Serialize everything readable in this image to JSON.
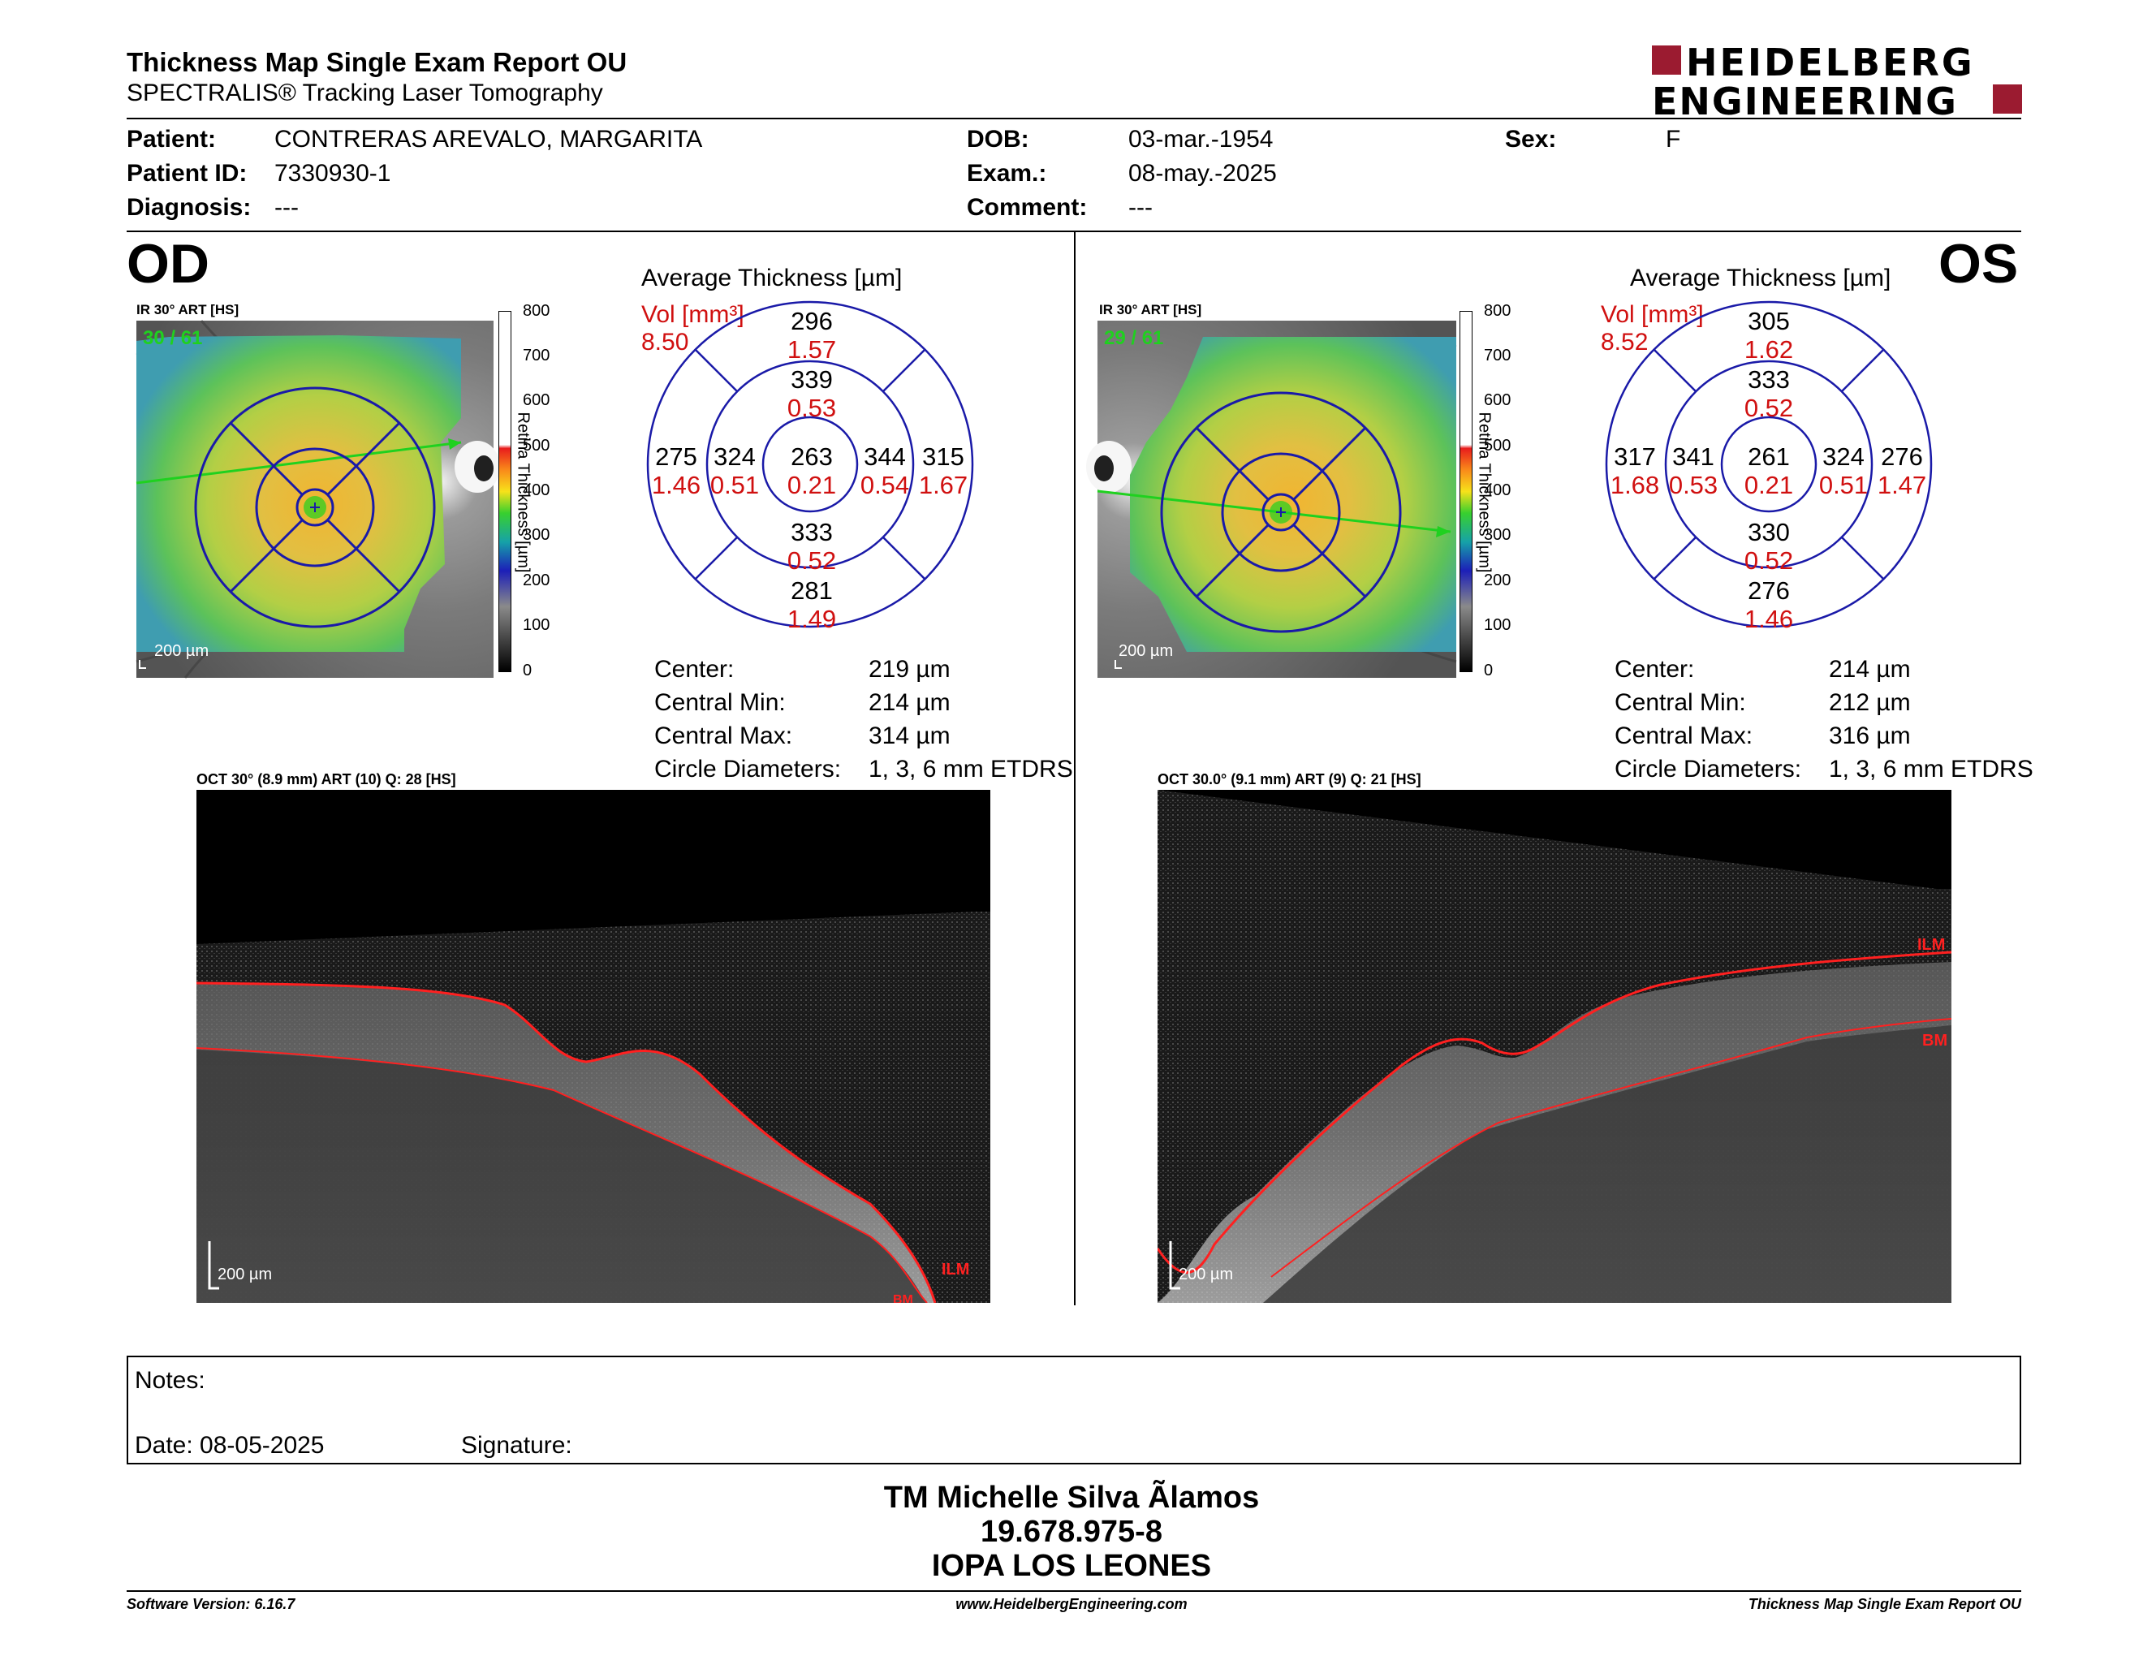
{
  "header": {
    "title": "Thickness Map Single Exam Report OU",
    "subtitle": "SPECTRALIS® Tracking Laser Tomography",
    "logo_line1": "HEIDELBERG",
    "logo_line2": "ENGINEERING",
    "brand_color": "#9b1b30"
  },
  "patient": {
    "patient_label": "Patient:",
    "patient_value": "CONTRERAS AREVALO, MARGARITA",
    "id_label": "Patient ID:",
    "id_value": "7330930-1",
    "diagnosis_label": "Diagnosis:",
    "diagnosis_value": "---",
    "dob_label": "DOB:",
    "dob_value": "03-mar.-1954",
    "exam_label": "Exam.:",
    "exam_value": "08-may.-2025",
    "comment_label": "Comment:",
    "comment_value": "---",
    "sex_label": "Sex:",
    "sex_value": "F"
  },
  "scale": {
    "ticks": [
      "800",
      "700",
      "600",
      "500",
      "400",
      "300",
      "200",
      "100",
      "0"
    ],
    "label": "Retina Thickness [µm]"
  },
  "od": {
    "eye": "OD",
    "ir_label": "IR 30° ART [HS]",
    "ir_counter": "30 / 61",
    "ir_scalebar": "200 µm",
    "avg_title": "Average Thickness [µm]",
    "vol_label": "Vol [mm³]",
    "vol_value": "8.50",
    "sectors": {
      "outer_superior": {
        "thick": "296",
        "vol": "1.57"
      },
      "inner_superior": {
        "thick": "339",
        "vol": "0.53"
      },
      "outer_temporal": {
        "thick": "275",
        "vol": "1.46"
      },
      "inner_temporal": {
        "thick": "324",
        "vol": "0.51"
      },
      "center": {
        "thick": "263",
        "vol": "0.21"
      },
      "inner_nasal": {
        "thick": "344",
        "vol": "0.54"
      },
      "outer_nasal": {
        "thick": "315",
        "vol": "1.67"
      },
      "inner_inferior": {
        "thick": "333",
        "vol": "0.52"
      },
      "outer_inferior": {
        "thick": "281",
        "vol": "1.49"
      }
    },
    "stats": [
      {
        "label": "Center:",
        "value": "219 µm"
      },
      {
        "label": "Central Min:",
        "value": "214 µm"
      },
      {
        "label": "Central Max:",
        "value": "314 µm"
      },
      {
        "label": "Circle Diameters:",
        "value": "1, 3, 6 mm ETDRS"
      }
    ],
    "oct_label": "OCT 30° (8.9 mm) ART (10) Q: 28 [HS]",
    "oct_scalebar": "200 µm",
    "ilm_label": "ILM",
    "bm_label": "BM"
  },
  "os": {
    "eye": "OS",
    "ir_label": "IR 30° ART [HS]",
    "ir_counter": "29 / 61",
    "ir_scalebar": "200 µm",
    "avg_title": "Average Thickness [µm]",
    "vol_label": "Vol [mm³]",
    "vol_value": "8.52",
    "sectors": {
      "outer_superior": {
        "thick": "305",
        "vol": "1.62"
      },
      "inner_superior": {
        "thick": "333",
        "vol": "0.52"
      },
      "outer_temporal": {
        "thick": "317",
        "vol": "1.68"
      },
      "inner_temporal": {
        "thick": "341",
        "vol": "0.53"
      },
      "center": {
        "thick": "261",
        "vol": "0.21"
      },
      "inner_nasal": {
        "thick": "324",
        "vol": "0.51"
      },
      "outer_nasal": {
        "thick": "276",
        "vol": "1.47"
      },
      "inner_inferior": {
        "thick": "330",
        "vol": "0.52"
      },
      "outer_inferior": {
        "thick": "276",
        "vol": "1.46"
      }
    },
    "stats": [
      {
        "label": "Center:",
        "value": "214 µm"
      },
      {
        "label": "Central Min:",
        "value": "212 µm"
      },
      {
        "label": "Central Max:",
        "value": "316 µm"
      },
      {
        "label": "Circle Diameters:",
        "value": "1, 3, 6 mm ETDRS"
      }
    ],
    "oct_label": "OCT 30.0° (9.1 mm) ART (9) Q: 21 [HS]",
    "oct_scalebar": "200 µm",
    "ilm_label": "ILM",
    "bm_label": "BM"
  },
  "notes": {
    "notes_label": "Notes:",
    "date_label": "Date: 08-05-2025",
    "signature_label": "Signature:"
  },
  "signoff": {
    "name": "TM Michelle Silva Ãlamos",
    "rut": "19.678.975-8",
    "clinic": "IOPA LOS LEONES"
  },
  "footer": {
    "software": "Software Version: 6.16.7",
    "website": "www.HeidelbergEngineering.com",
    "report": "Thickness Map Single Exam Report OU"
  }
}
